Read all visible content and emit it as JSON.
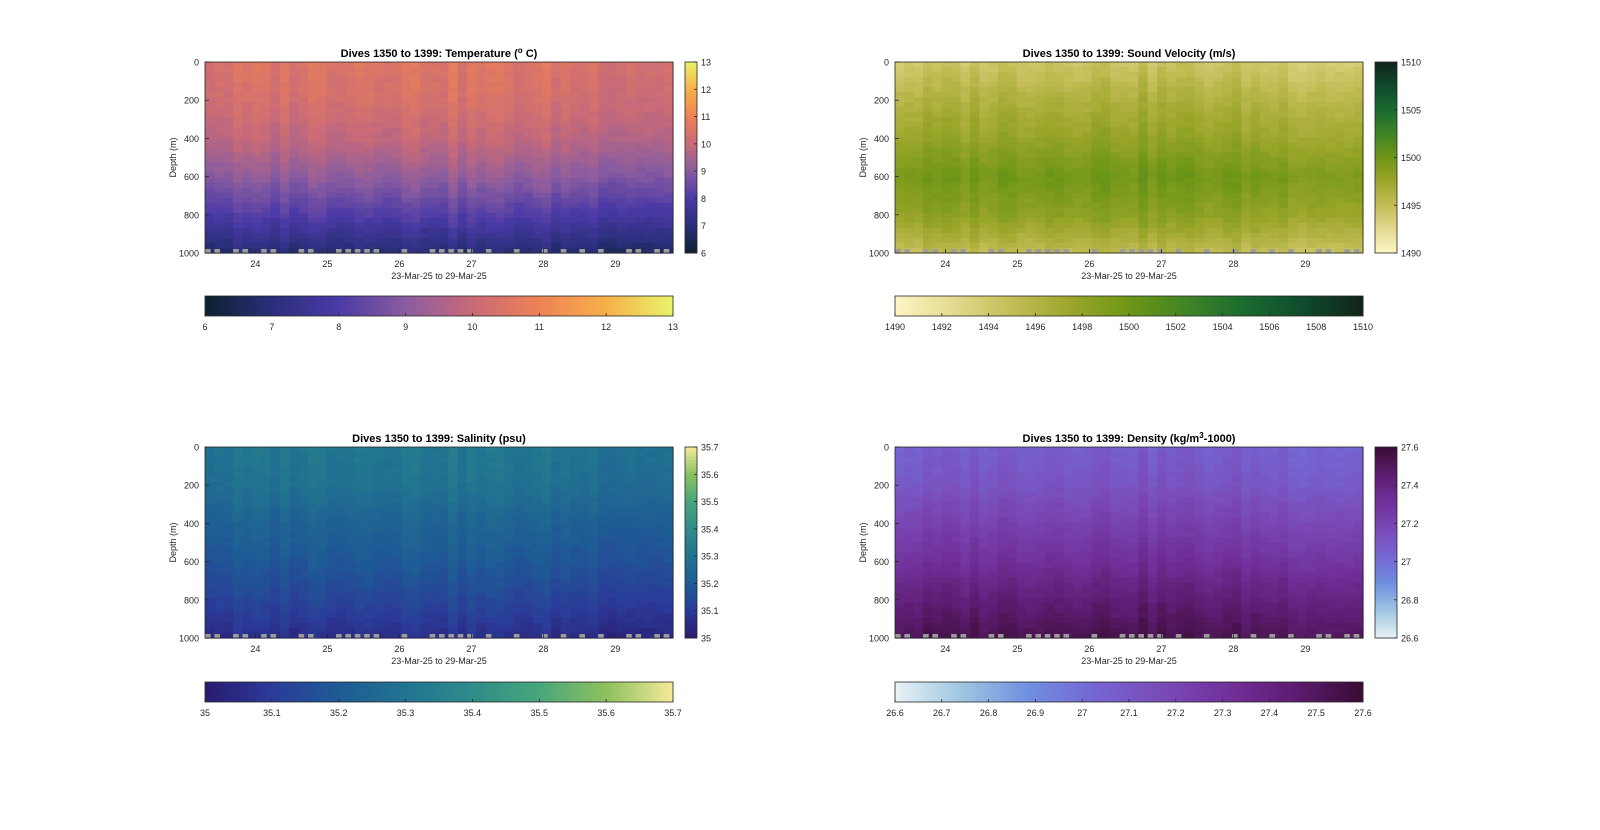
{
  "figure": {
    "panels": [
      {
        "id": "temperature",
        "title_prefix": "Dives 1350 to 1399: Temperature (",
        "title_sup": "o",
        "title_suffix": " C)",
        "ylabel": "Depth (m)",
        "xlabel": "23-Mar-25 to 29-Mar-25",
        "y_ticks": [
          "0",
          "200",
          "400",
          "600",
          "800",
          "1000"
        ],
        "x_ticks": [
          "24",
          "25",
          "26",
          "27",
          "28",
          "29"
        ],
        "side_colorbar_ticks": [
          "13",
          "12",
          "11",
          "10",
          "9",
          "8",
          "7",
          "6"
        ],
        "bottom_colorbar_ticks": [
          "6",
          "7",
          "8",
          "9",
          "10",
          "11",
          "12",
          "13"
        ],
        "colormap": [
          "#0d2130",
          "#2a2f7a",
          "#4b3aa6",
          "#8a5ca0",
          "#c86a78",
          "#ee8255",
          "#f6b04a",
          "#e9f36a"
        ]
      },
      {
        "id": "sound-velocity",
        "title_prefix": "Dives 1350 to 1399: Sound Velocity (m/s)",
        "title_sup": "",
        "title_suffix": "",
        "ylabel": "Depth (m)",
        "xlabel": "23-Mar-25 to 29-Mar-25",
        "y_ticks": [
          "0",
          "200",
          "400",
          "600",
          "800",
          "1000"
        ],
        "x_ticks": [
          "24",
          "25",
          "26",
          "27",
          "28",
          "29"
        ],
        "side_colorbar_ticks": [
          "1510",
          "1505",
          "1500",
          "1495",
          "1490"
        ],
        "bottom_colorbar_ticks": [
          "1490",
          "1492",
          "1494",
          "1496",
          "1498",
          "1500",
          "1502",
          "1504",
          "1506",
          "1508",
          "1510"
        ],
        "colormap": [
          "#fcf6c4",
          "#e4d98e",
          "#c4bd57",
          "#9ba62a",
          "#6f9616",
          "#3f8426",
          "#196a30",
          "#0f4a2c",
          "#102419"
        ]
      },
      {
        "id": "salinity",
        "title_prefix": "Dives 1350 to 1399: Salinity (psu)",
        "title_sup": "",
        "title_suffix": "",
        "ylabel": "Depth (m)",
        "xlabel": "23-Mar-25 to 29-Mar-25",
        "y_ticks": [
          "0",
          "200",
          "400",
          "600",
          "800",
          "1000"
        ],
        "x_ticks": [
          "24",
          "25",
          "26",
          "27",
          "28",
          "29"
        ],
        "side_colorbar_ticks": [
          "35.7",
          "35.6",
          "35.5",
          "35.4",
          "35.3",
          "35.2",
          "35.1",
          "35"
        ],
        "bottom_colorbar_ticks": [
          "35",
          "35.1",
          "35.2",
          "35.3",
          "35.4",
          "35.5",
          "35.6",
          "35.7"
        ],
        "colormap": [
          "#2a1a6e",
          "#2b3b99",
          "#1e5b95",
          "#217390",
          "#2e8c8a",
          "#48a67c",
          "#8cc15e",
          "#f6ea9a"
        ]
      },
      {
        "id": "density",
        "title_prefix": "Dives 1350 to 1399: Density (kg/m",
        "title_sup": "3",
        "title_suffix": "-1000)",
        "ylabel": "Depth (m)",
        "xlabel": "23-Mar-25 to 29-Mar-25",
        "y_ticks": [
          "0",
          "200",
          "400",
          "600",
          "800",
          "1000"
        ],
        "x_ticks": [
          "24",
          "25",
          "26",
          "27",
          "28",
          "29"
        ],
        "side_colorbar_ticks": [
          "27.6",
          "27.4",
          "27.2",
          "27",
          "26.8",
          "26.6"
        ],
        "bottom_colorbar_ticks": [
          "26.6",
          "26.7",
          "26.8",
          "26.9",
          "27",
          "27.1",
          "27.2",
          "27.3",
          "27.4",
          "27.5",
          "27.6"
        ],
        "colormap": [
          "#e8f3f5",
          "#9ec6e2",
          "#6f8fe0",
          "#7565d1",
          "#7a4ab8",
          "#71309a",
          "#5c1c70",
          "#3a0c33"
        ]
      }
    ]
  },
  "chart_data": [
    {
      "type": "heatmap",
      "title": "Dives 1350 to 1399: Temperature (o C)",
      "xlabel": "23-Mar-25 to 29-Mar-25",
      "ylabel": "Depth (m)",
      "x_range": [
        23.3,
        29.8
      ],
      "y_range": [
        0,
        1000
      ],
      "y_reversed": true,
      "color_range": [
        6,
        13
      ],
      "surface_value": 10.3,
      "bottom_value": 6.7,
      "mid_profile": [
        [
          0,
          10.4
        ],
        [
          200,
          10.2
        ],
        [
          400,
          9.8
        ],
        [
          600,
          9.0
        ],
        [
          800,
          8.0
        ],
        [
          1000,
          6.8
        ]
      ],
      "colorbar_side": "right",
      "colorbar_bottom": true,
      "grid": false
    },
    {
      "type": "heatmap",
      "title": "Dives 1350 to 1399: Sound Velocity (m/s)",
      "xlabel": "23-Mar-25 to 29-Mar-25",
      "ylabel": "Depth (m)",
      "x_range": [
        23.3,
        29.8
      ],
      "y_range": [
        0,
        1000
      ],
      "y_reversed": true,
      "color_range": [
        1490,
        1510
      ],
      "mid_profile": [
        [
          0,
          1494
        ],
        [
          200,
          1496
        ],
        [
          400,
          1497.5
        ],
        [
          600,
          1499.5
        ],
        [
          800,
          1498
        ],
        [
          1000,
          1495
        ]
      ],
      "colorbar_side": "right",
      "colorbar_bottom": true,
      "grid": false
    },
    {
      "type": "heatmap",
      "title": "Dives 1350 to 1399: Salinity (psu)",
      "xlabel": "23-Mar-25 to 29-Mar-25",
      "ylabel": "Depth (m)",
      "x_range": [
        23.3,
        29.8
      ],
      "y_range": [
        0,
        1000
      ],
      "y_reversed": true,
      "color_range": [
        35,
        35.7
      ],
      "mid_profile": [
        [
          0,
          35.3
        ],
        [
          200,
          35.28
        ],
        [
          400,
          35.22
        ],
        [
          600,
          35.18
        ],
        [
          800,
          35.12
        ],
        [
          1000,
          35.05
        ]
      ],
      "colorbar_side": "right",
      "colorbar_bottom": true,
      "grid": false
    },
    {
      "type": "heatmap",
      "title": "Dives 1350 to 1399: Density (kg/m3-1000)",
      "xlabel": "23-Mar-25 to 29-Mar-25",
      "ylabel": "Depth (m)",
      "x_range": [
        23.3,
        29.8
      ],
      "y_range": [
        0,
        1000
      ],
      "y_reversed": true,
      "color_range": [
        26.6,
        27.6
      ],
      "mid_profile": [
        [
          0,
          27.05
        ],
        [
          200,
          27.1
        ],
        [
          400,
          27.2
        ],
        [
          600,
          27.3
        ],
        [
          800,
          27.42
        ],
        [
          1000,
          27.52
        ]
      ],
      "colorbar_side": "right",
      "colorbar_bottom": true,
      "grid": false
    }
  ]
}
